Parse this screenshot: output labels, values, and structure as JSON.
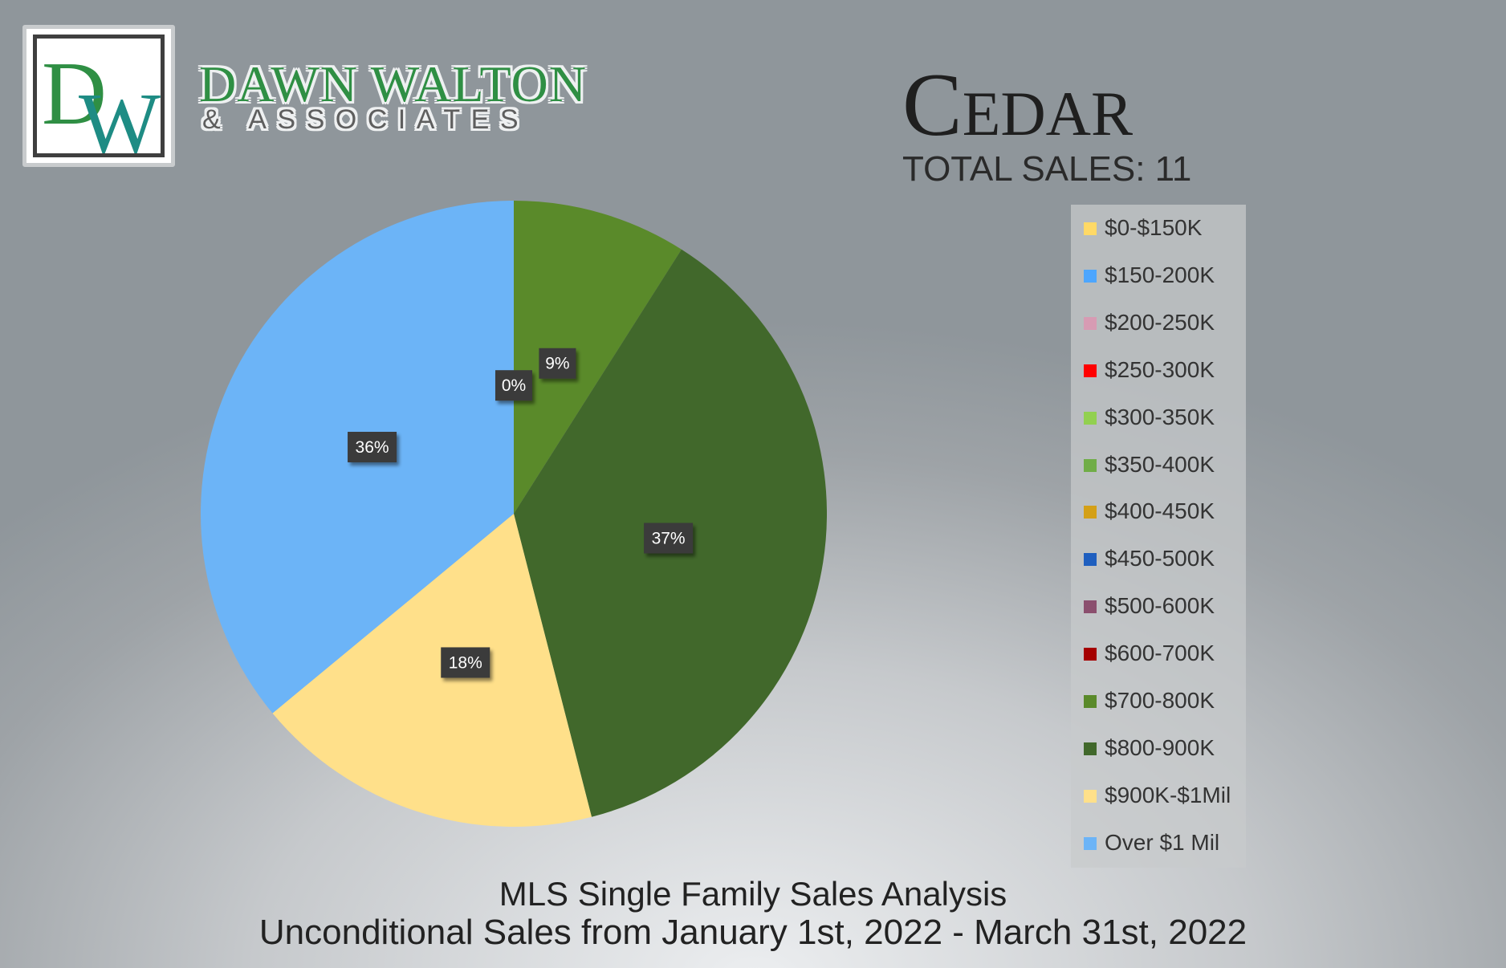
{
  "brand": {
    "logo_monogram": "DW",
    "name": "DAWN WALTON",
    "sub": "& ASSOCIATES",
    "green": "#2f8f44",
    "teal": "#1e8c84"
  },
  "header": {
    "city": "Cedar",
    "total_sales": "TOTAL SALES: 11"
  },
  "footer": {
    "line1": "MLS Single Family Sales Analysis",
    "line2": "Unconditional Sales from January 1st, 2022 - March 31st, 2022"
  },
  "chart_data": {
    "type": "pie",
    "title": "",
    "legend_position": "right",
    "legend": [
      {
        "label": "$0-$150K",
        "color": "#ffd966"
      },
      {
        "label": "$150-200K",
        "color": "#4da6ff"
      },
      {
        "label": "$200-250K",
        "color": "#d79bb3"
      },
      {
        "label": "$250-300K",
        "color": "#ff0000"
      },
      {
        "label": "$300-350K",
        "color": "#92d050"
      },
      {
        "label": "$350-400K",
        "color": "#70ad47"
      },
      {
        "label": "$400-450K",
        "color": "#d4a017"
      },
      {
        "label": "$450-500K",
        "color": "#1f5fbf"
      },
      {
        "label": "$500-600K",
        "color": "#8b4f6e"
      },
      {
        "label": "$600-700K",
        "color": "#a50000"
      },
      {
        "label": "$700-800K",
        "color": "#5a8a2a"
      },
      {
        "label": "$800-900K",
        "color": "#41682b"
      },
      {
        "label": "$900K-$1Mil",
        "color": "#ffe08a"
      },
      {
        "label": "Over $1 Mil",
        "color": "#6cb4f7"
      }
    ],
    "slices": [
      {
        "label": "$700-800K",
        "value": 9,
        "display": "9%",
        "color": "#5a8a2a"
      },
      {
        "label": "$800-900K",
        "value": 37,
        "display": "37%",
        "color": "#41682b"
      },
      {
        "label": "$900K-$1Mil",
        "value": 18,
        "display": "18%",
        "color": "#ffe08a"
      },
      {
        "label": "Over $1 Mil",
        "value": 36,
        "display": "36%",
        "color": "#6cb4f7"
      }
    ],
    "extra_labels": [
      {
        "display": "0%"
      }
    ]
  }
}
